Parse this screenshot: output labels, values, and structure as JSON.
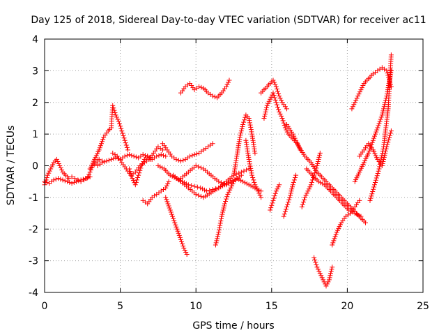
{
  "chart_data": {
    "type": "scatter",
    "title": "Day 125 of 2018, Sidereal Day-to-day VTEC variation (SDTVAR) for receiver ac11",
    "xlabel": "GPS time / hours",
    "ylabel": "SDTVAR / TECUs",
    "xlim": [
      0,
      25
    ],
    "ylim": [
      -4,
      4
    ],
    "xticks": [
      0,
      5,
      10,
      15,
      20,
      25
    ],
    "yticks": [
      -4,
      -3,
      -2,
      -1,
      0,
      1,
      2,
      3,
      4
    ],
    "xtick_labels": [
      "0",
      "5",
      "10",
      "15",
      "20",
      "25"
    ],
    "ytick_labels": [
      "-4",
      "-3",
      "-2",
      "-1",
      "0",
      "1",
      "2",
      "3",
      "4"
    ],
    "grid": true,
    "marker": "+",
    "color": "#ff0000",
    "series": [
      {
        "x": [
          0.0,
          0.2,
          0.4,
          0.6,
          0.8,
          1.0,
          1.2,
          1.4,
          1.6,
          1.8,
          2.0,
          2.2,
          2.4,
          2.6,
          2.8,
          3.0,
          3.2,
          3.4,
          3.6,
          3.8
        ],
        "y": [
          -0.6,
          -0.3,
          -0.1,
          0.1,
          0.2,
          0.0,
          -0.2,
          -0.3,
          -0.4,
          -0.35,
          -0.4,
          -0.45,
          -0.5,
          -0.45,
          -0.4,
          -0.2,
          0.0,
          0.1,
          0.2,
          0.15
        ]
      },
      {
        "x": [
          0.0,
          0.3,
          0.6,
          0.9,
          1.2,
          1.5,
          1.8,
          2.1,
          2.4,
          2.7,
          3.0
        ],
        "y": [
          -0.5,
          -0.55,
          -0.45,
          -0.4,
          -0.45,
          -0.5,
          -0.55,
          -0.5,
          -0.45,
          -0.4,
          -0.35
        ]
      },
      {
        "x": [
          3.0,
          3.3,
          3.6,
          3.9,
          4.2,
          4.4,
          4.5,
          4.7,
          4.9,
          5.1,
          5.3,
          5.5
        ],
        "y": [
          -0.1,
          0.2,
          0.5,
          0.9,
          1.1,
          1.2,
          1.9,
          1.6,
          1.4,
          1.1,
          0.8,
          0.5
        ]
      },
      {
        "x": [
          3.5,
          3.8,
          4.1,
          4.4,
          4.7,
          5.0,
          5.3,
          5.6,
          5.9,
          6.2,
          6.5,
          6.8,
          7.1,
          7.4,
          7.7,
          8.0
        ],
        "y": [
          0.0,
          0.1,
          0.15,
          0.2,
          0.25,
          0.2,
          0.3,
          0.35,
          0.3,
          0.25,
          0.35,
          0.3,
          0.2,
          0.3,
          0.35,
          0.3
        ]
      },
      {
        "x": [
          4.5,
          4.8,
          5.1,
          5.4,
          5.7,
          6.0,
          6.3,
          6.6,
          6.9,
          7.2,
          7.5,
          7.8
        ],
        "y": [
          0.4,
          0.3,
          0.1,
          -0.1,
          -0.3,
          -0.2,
          0.0,
          0.1,
          0.2,
          0.4,
          0.6,
          0.5
        ]
      },
      {
        "x": [
          5.6,
          5.8,
          6.0,
          6.2,
          6.4,
          6.6,
          6.8,
          7.0
        ],
        "y": [
          -0.1,
          -0.4,
          -0.6,
          -0.3,
          0.0,
          0.2,
          0.3,
          0.2
        ]
      },
      {
        "x": [
          7.8,
          8.1,
          8.4,
          8.7,
          9.0,
          9.3,
          9.6,
          9.9,
          10.2,
          10.5,
          10.8,
          11.1
        ],
        "y": [
          0.7,
          0.5,
          0.3,
          0.2,
          0.15,
          0.2,
          0.3,
          0.35,
          0.4,
          0.5,
          0.6,
          0.7
        ]
      },
      {
        "x": [
          6.5,
          6.8,
          7.1,
          7.4,
          7.7,
          8.0,
          8.2
        ],
        "y": [
          -1.1,
          -1.2,
          -1.0,
          -0.9,
          -0.8,
          -0.7,
          -0.5
        ]
      },
      {
        "x": [
          8.0,
          8.3,
          8.6,
          8.9,
          9.2,
          9.4
        ],
        "y": [
          -1.0,
          -1.4,
          -1.8,
          -2.2,
          -2.6,
          -2.8
        ]
      },
      {
        "x": [
          7.5,
          7.9,
          8.3,
          8.7,
          9.1,
          9.5,
          9.9,
          10.3,
          10.7,
          11.1,
          11.5,
          11.9,
          12.3,
          12.7,
          13.1,
          13.5,
          13.9,
          14.3
        ],
        "y": [
          0.0,
          -0.1,
          -0.3,
          -0.4,
          -0.5,
          -0.6,
          -0.65,
          -0.7,
          -0.8,
          -0.75,
          -0.7,
          -0.6,
          -0.5,
          -0.4,
          -0.5,
          -0.6,
          -0.7,
          -0.8
        ]
      },
      {
        "x": [
          8.5,
          9.0,
          9.5,
          10.0,
          10.5,
          11.0,
          11.5,
          12.0,
          12.5,
          13.0,
          13.5
        ],
        "y": [
          -0.3,
          -0.5,
          -0.7,
          -0.9,
          -1.0,
          -0.85,
          -0.7,
          -0.5,
          -0.3,
          -0.2,
          -0.1
        ]
      },
      {
        "x": [
          9.0,
          9.5,
          10.0,
          10.5,
          11.0,
          11.5,
          12.0,
          12.5,
          13.0
        ],
        "y": [
          -0.4,
          -0.2,
          0.0,
          -0.1,
          -0.3,
          -0.5,
          -0.6,
          -0.5,
          -0.3
        ]
      },
      {
        "x": [
          9.0,
          9.3,
          9.6,
          9.9,
          10.2,
          10.5,
          10.8,
          11.1,
          11.4,
          11.7,
          12.0,
          12.2
        ],
        "y": [
          2.3,
          2.5,
          2.6,
          2.4,
          2.5,
          2.45,
          2.3,
          2.2,
          2.15,
          2.3,
          2.5,
          2.7
        ]
      },
      {
        "x": [
          11.3,
          11.5,
          11.7,
          11.9,
          12.1,
          12.3,
          12.5
        ],
        "y": [
          -2.5,
          -2.1,
          -1.6,
          -1.2,
          -0.9,
          -0.7,
          -0.5
        ]
      },
      {
        "x": [
          12.5,
          12.7,
          12.9,
          13.1,
          13.3,
          13.5,
          13.7,
          13.9
        ],
        "y": [
          -0.3,
          0.3,
          0.9,
          1.3,
          1.6,
          1.5,
          1.0,
          0.4
        ]
      },
      {
        "x": [
          13.3,
          13.5,
          13.7,
          13.9,
          14.1,
          14.3
        ],
        "y": [
          0.8,
          0.2,
          -0.3,
          -0.6,
          -0.8,
          -1.0
        ]
      },
      {
        "x": [
          14.3,
          14.5,
          14.7,
          14.9,
          15.1,
          15.3,
          15.5,
          15.7,
          16.0
        ],
        "y": [
          2.3,
          2.4,
          2.5,
          2.6,
          2.7,
          2.5,
          2.2,
          2.0,
          1.8
        ]
      },
      {
        "x": [
          14.5,
          14.7,
          14.9,
          15.1,
          15.3,
          15.5,
          15.7,
          15.9,
          16.1,
          16.3,
          16.5,
          16.7,
          16.9
        ],
        "y": [
          1.5,
          1.9,
          2.1,
          2.3,
          2.0,
          1.7,
          1.5,
          1.2,
          1.0,
          0.9,
          0.8,
          0.7,
          0.5
        ]
      },
      {
        "x": [
          16.0,
          16.4,
          16.8,
          17.2,
          17.6,
          18.0,
          18.4,
          18.8,
          19.2,
          19.6,
          20.0,
          20.4,
          20.8,
          21.2
        ],
        "y": [
          1.3,
          1.0,
          0.6,
          0.3,
          0.1,
          -0.2,
          -0.4,
          -0.6,
          -0.8,
          -1.0,
          -1.2,
          -1.4,
          -1.6,
          -1.8
        ]
      },
      {
        "x": [
          14.9,
          15.1,
          15.3,
          15.5
        ],
        "y": [
          -1.4,
          -1.1,
          -0.8,
          -0.6
        ]
      },
      {
        "x": [
          15.8,
          16.0,
          16.2,
          16.4,
          16.6
        ],
        "y": [
          -1.6,
          -1.3,
          -1.0,
          -0.6,
          -0.3
        ]
      },
      {
        "x": [
          17.0,
          17.2,
          17.4,
          17.6,
          17.8,
          18.0,
          18.2
        ],
        "y": [
          -1.3,
          -1.0,
          -0.8,
          -0.6,
          -0.3,
          0.0,
          0.4
        ]
      },
      {
        "x": [
          17.3,
          17.7,
          18.1,
          18.5,
          18.9,
          19.3,
          19.7,
          20.1,
          20.5,
          20.9
        ],
        "y": [
          -0.1,
          -0.3,
          -0.5,
          -0.6,
          -0.8,
          -1.0,
          -1.2,
          -1.4,
          -1.5,
          -1.6
        ]
      },
      {
        "x": [
          17.8,
          18.0,
          18.2,
          18.4,
          18.6,
          18.8,
          19.0
        ],
        "y": [
          -2.9,
          -3.2,
          -3.4,
          -3.6,
          -3.8,
          -3.6,
          -3.2
        ]
      },
      {
        "x": [
          19.0,
          19.3,
          19.6,
          19.9,
          20.2,
          20.5,
          20.8
        ],
        "y": [
          -2.5,
          -2.1,
          -1.8,
          -1.6,
          -1.5,
          -1.3,
          -1.1
        ]
      },
      {
        "x": [
          20.3,
          20.5,
          20.7,
          20.9,
          21.1,
          21.3,
          21.5,
          21.7,
          22.0,
          22.3,
          22.6,
          22.9
        ],
        "y": [
          1.8,
          2.0,
          2.2,
          2.4,
          2.6,
          2.7,
          2.8,
          2.9,
          3.0,
          3.1,
          3.0,
          2.5
        ]
      },
      {
        "x": [
          20.5,
          20.8,
          21.1,
          21.4,
          21.7,
          22.0,
          22.3,
          22.6,
          22.9
        ],
        "y": [
          -0.5,
          -0.2,
          0.1,
          0.4,
          0.8,
          1.2,
          1.6,
          2.2,
          3.0
        ]
      },
      {
        "x": [
          20.8,
          21.1,
          21.4,
          21.7,
          22.0,
          22.3,
          22.6,
          22.9
        ],
        "y": [
          0.3,
          0.5,
          0.7,
          0.5,
          0.2,
          0.0,
          0.6,
          1.1
        ]
      },
      {
        "x": [
          21.5,
          21.8,
          22.1,
          22.4,
          22.7,
          22.9
        ],
        "y": [
          -1.1,
          -0.6,
          -0.1,
          0.6,
          1.8,
          3.5
        ]
      }
    ]
  }
}
